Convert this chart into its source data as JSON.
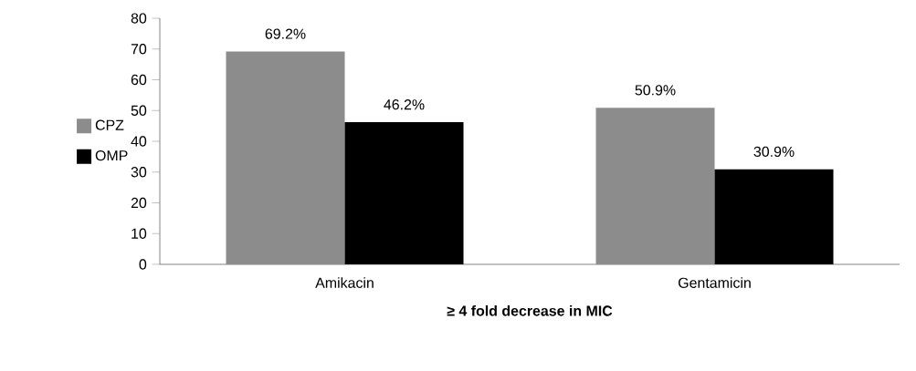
{
  "chart_data": {
    "type": "bar",
    "xlabel": "≥ 4 fold decrease in MIC",
    "categories": [
      "Amikacin",
      "Gentamicin"
    ],
    "series": [
      {
        "name": "CPZ",
        "color": "#8c8c8c",
        "values": [
          69.2,
          50.9
        ],
        "value_labels": [
          "69.2%",
          "50.9%"
        ]
      },
      {
        "name": "OMP",
        "color": "#000000",
        "values": [
          46.2,
          30.9
        ],
        "value_labels": [
          "46.2%",
          "30.9%"
        ]
      }
    ],
    "ylim": [
      0,
      80
    ],
    "yticks": [
      0,
      10,
      20,
      30,
      40,
      50,
      60,
      70,
      80
    ],
    "grid": false,
    "legend": "left"
  }
}
